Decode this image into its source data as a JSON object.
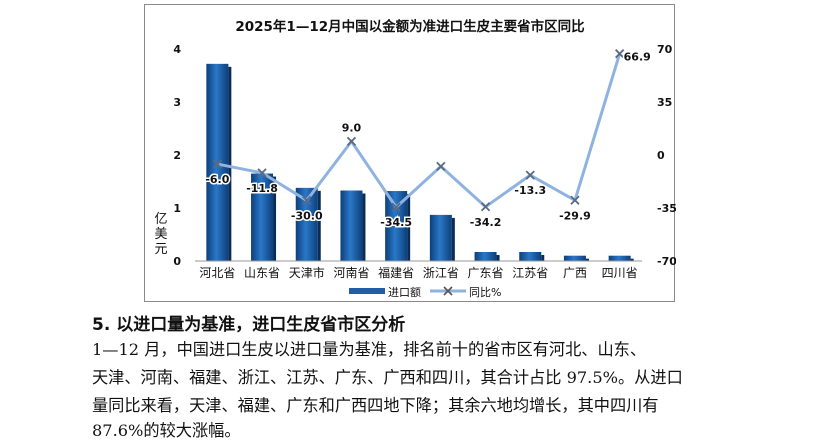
{
  "chart_data": {
    "type": "bar+line",
    "title": "2025年1—12月中国以金额为准进口生皮主要省市区同比",
    "ylabel": "亿美元",
    "categories": [
      "河北省",
      "山东省",
      "天津市",
      "河南省",
      "福建省",
      "浙江省",
      "广东省",
      "江苏省",
      "广西",
      "四川省"
    ],
    "left_axis": {
      "ticks": [
        "0",
        "1",
        "2",
        "3",
        "4"
      ],
      "ylim": [
        0,
        4
      ]
    },
    "right_axis": {
      "ticks": [
        "-70",
        "-35",
        "0",
        "35",
        "70"
      ],
      "ylim": [
        -70,
        70
      ]
    },
    "series": [
      {
        "name": "进口额",
        "type": "bar",
        "axis": "left",
        "color": "#1f5fa8",
        "values": [
          3.72,
          1.65,
          1.38,
          1.33,
          1.32,
          0.87,
          0.17,
          0.17,
          0.1,
          0.1
        ]
      },
      {
        "name": "同比%",
        "type": "line",
        "axis": "right",
        "color": "#8fb3e0",
        "values": [
          -6.0,
          -11.8,
          -30.0,
          9.0,
          -34.5,
          -7.5,
          -34.2,
          -13.3,
          -29.9,
          66.9
        ],
        "labels": [
          "-6.0",
          "-11.8",
          "-30.0",
          "9.0",
          "-34.5",
          "",
          "-34.2",
          "-13.3",
          "-29.9",
          "66.9"
        ]
      }
    ],
    "legend_position": "bottom",
    "grid": false
  },
  "article": {
    "section_heading": "5. 以进口量为基准，进口生皮省市区分析",
    "paragraph_lines": [
      "    1—12 月，中国进口生皮以进口量为基准，排名前十的省市区有河北、山东、",
      "天津、河南、福建、浙江、江苏、广东、广西和四川，其合计占比 97.5%。从进口",
      "量同比来看，天津、福建、广东和广西四地下降；其余六地均增长，其中四川有",
      "87.6%的较大涨幅。"
    ]
  }
}
